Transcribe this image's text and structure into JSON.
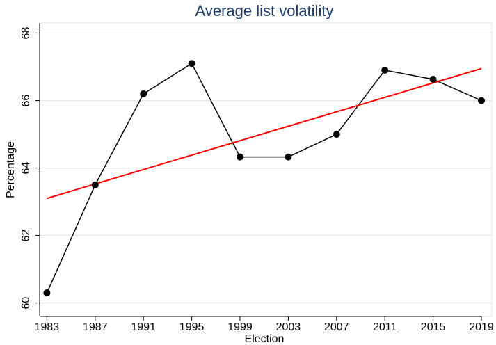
{
  "chart_data": {
    "type": "line",
    "title": "Average list volatility",
    "x_label": "Election",
    "y_label": "Percentage",
    "x": [
      1983,
      1987,
      1991,
      1995,
      1999,
      2003,
      2007,
      2011,
      2015,
      2019
    ],
    "series": [
      {
        "color": "#000000",
        "values": [
          60.3,
          63.5,
          66.2,
          67.1,
          64.33,
          64.33,
          65.0,
          66.9,
          66.63,
          66.0
        ]
      }
    ],
    "trend": {
      "color": "#ff0000",
      "x": [
        1983,
        2019
      ],
      "values": [
        63.1,
        66.95
      ]
    },
    "xlim": [
      1982.4,
      2019
    ],
    "xticks": [
      1983,
      1987,
      1991,
      1995,
      1999,
      2003,
      2007,
      2011,
      2015,
      2019
    ],
    "ylim": [
      59.6,
      68.3
    ],
    "yticks": [
      60,
      62,
      64,
      66,
      68
    ],
    "grid": true
  }
}
